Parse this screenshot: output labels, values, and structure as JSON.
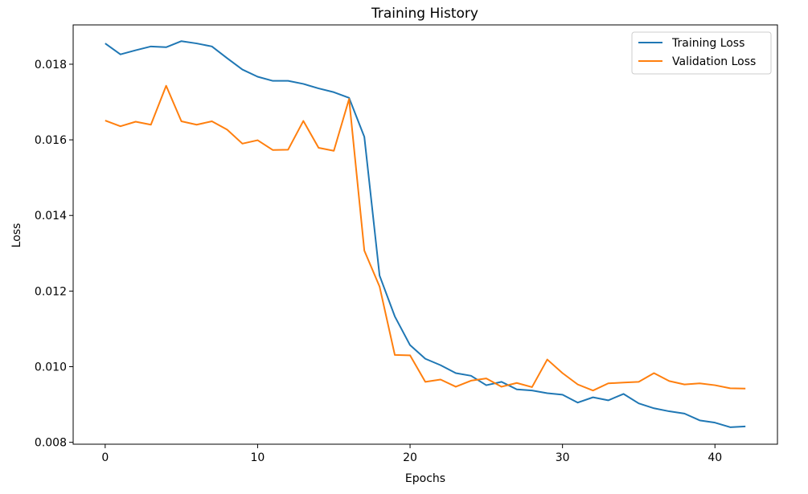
{
  "chart_data": {
    "type": "line",
    "title": "Training History",
    "xlabel": "Epochs",
    "ylabel": "Loss",
    "xlim": [
      -2.1,
      44.1
    ],
    "ylim": [
      0.00795,
      0.01904
    ],
    "xticks": [
      0,
      10,
      20,
      30,
      40
    ],
    "yticks": [
      0.008,
      0.01,
      0.012,
      0.014,
      0.016,
      0.018
    ],
    "ytick_labels": [
      "0.008",
      "0.010",
      "0.012",
      "0.014",
      "0.016",
      "0.018"
    ],
    "grid": false,
    "legend_position": "top-right",
    "x": [
      0,
      1,
      2,
      3,
      4,
      5,
      6,
      7,
      8,
      9,
      10,
      11,
      12,
      13,
      14,
      15,
      16,
      17,
      18,
      19,
      20,
      21,
      22,
      23,
      24,
      25,
      26,
      27,
      28,
      29,
      30,
      31,
      32,
      33,
      34,
      35,
      36,
      37,
      38,
      39,
      40,
      41,
      42
    ],
    "series": [
      {
        "name": "Training Loss",
        "color": "#1f77b4",
        "values": [
          0.01855,
          0.01826,
          0.01837,
          0.01847,
          0.01845,
          0.01861,
          0.01855,
          0.01847,
          0.01816,
          0.01786,
          0.01767,
          0.01756,
          0.01756,
          0.01748,
          0.01736,
          0.01726,
          0.01711,
          0.01608,
          0.01241,
          0.01133,
          0.01057,
          0.01021,
          0.01004,
          0.00983,
          0.00976,
          0.00951,
          0.0096,
          0.0094,
          0.00937,
          0.0093,
          0.00926,
          0.00905,
          0.00919,
          0.00911,
          0.00928,
          0.00903,
          0.0089,
          0.00882,
          0.00876,
          0.00858,
          0.00852,
          0.0084,
          0.00842
        ]
      },
      {
        "name": "Validation Loss",
        "color": "#ff7f0e",
        "values": [
          0.01651,
          0.01636,
          0.01648,
          0.0164,
          0.01743,
          0.01649,
          0.0164,
          0.01649,
          0.01627,
          0.0159,
          0.01599,
          0.01573,
          0.01574,
          0.0165,
          0.01579,
          0.01571,
          0.01708,
          0.01307,
          0.01212,
          0.01031,
          0.0103,
          0.0096,
          0.00966,
          0.00947,
          0.00963,
          0.00969,
          0.00947,
          0.00957,
          0.00946,
          0.01019,
          0.00983,
          0.00953,
          0.00937,
          0.00956,
          0.00958,
          0.0096,
          0.00983,
          0.00962,
          0.00953,
          0.00956,
          0.00951,
          0.00943,
          0.00942
        ]
      }
    ]
  }
}
